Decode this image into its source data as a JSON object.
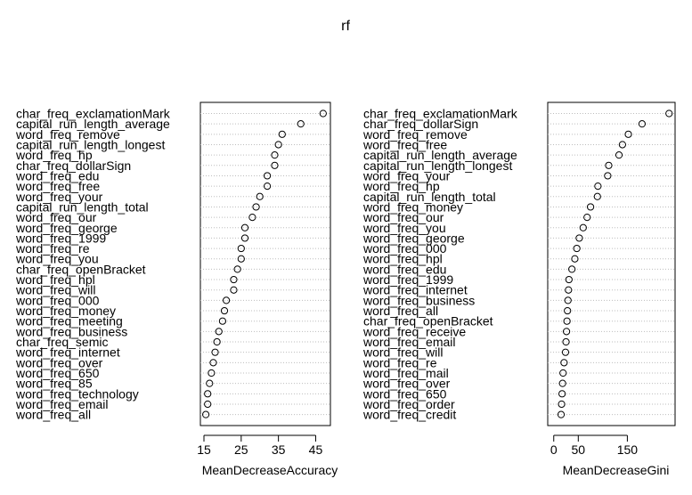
{
  "title": "rf",
  "chart_data": [
    {
      "type": "scatter",
      "xlabel": "MeanDecreaseAccuracy",
      "xlim": [
        15,
        48
      ],
      "xticks": [
        15,
        25,
        35,
        45
      ],
      "variables": [
        "char_freq_exclamationMark",
        "capital_run_length_average",
        "word_freq_remove",
        "capital_run_length_longest",
        "word_freq_hp",
        "char_freq_dollarSign",
        "word_freq_edu",
        "word_freq_free",
        "word_freq_your",
        "capital_run_length_total",
        "word_freq_our",
        "word_freq_george",
        "word_freq_1999",
        "word_freq_re",
        "word_freq_you",
        "char_freq_openBracket",
        "word_freq_hpl",
        "word_freq_will",
        "word_freq_000",
        "word_freq_money",
        "word_freq_meeting",
        "word_freq_business",
        "char_freq_semic",
        "word_freq_internet",
        "word_freq_over",
        "word_freq_650",
        "word_freq_85",
        "word_freq_technology",
        "word_freq_email",
        "word_freq_all"
      ],
      "values": [
        47,
        41,
        36,
        35,
        34,
        34,
        32,
        32,
        30,
        29,
        28,
        26,
        26,
        25,
        25,
        24,
        23,
        23,
        21,
        20.5,
        20,
        19,
        18.5,
        18,
        17.5,
        17,
        16.5,
        16,
        16,
        15.5
      ]
    },
    {
      "type": "scatter",
      "xlabel": "MeanDecreaseGini",
      "xlim": [
        -5,
        240
      ],
      "xticks": [
        0,
        50,
        150
      ],
      "variables": [
        "char_freq_exclamationMark",
        "char_freq_dollarSign",
        "word_freq_remove",
        "word_freq_free",
        "capital_run_length_average",
        "capital_run_length_longest",
        "word_freq_your",
        "word_freq_hp",
        "capital_run_length_total",
        "word_freq_money",
        "word_freq_our",
        "word_freq_you",
        "word_freq_george",
        "word_freq_000",
        "word_freq_hpl",
        "word_freq_edu",
        "word_freq_1999",
        "word_freq_internet",
        "word_freq_business",
        "word_freq_all",
        "char_freq_openBracket",
        "word_freq_receive",
        "word_freq_email",
        "word_freq_will",
        "word_freq_re",
        "word_freq_mail",
        "word_freq_over",
        "word_freq_650",
        "word_freq_order",
        "word_freq_credit"
      ],
      "values": [
        235,
        180,
        152,
        140,
        133,
        112,
        110,
        90,
        89,
        75,
        68,
        60,
        52,
        47,
        43,
        37,
        31,
        30,
        29,
        28,
        27,
        26,
        25,
        24,
        21,
        19,
        18,
        17,
        16,
        15
      ]
    }
  ]
}
